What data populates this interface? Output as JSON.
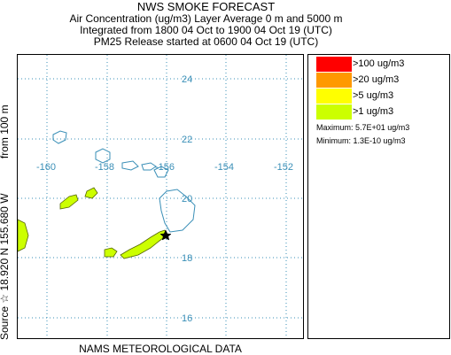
{
  "header": {
    "title": "NWS SMOKE FORECAST",
    "line2": "Air Concentration (ug/m3) Layer Average    0 m and  5000 m",
    "line3": "Integrated from 1800 04 Oct to 1900 04 Oct 19 (UTC)",
    "line4": "PM25 Release started at 0600 04 Oct 19 (UTC)"
  },
  "side_label": {
    "source": "Source ☆  18.920 N 155.680  W",
    "height": "from   100 m"
  },
  "bottom_label": "NAMS METEOROLOGICAL DATA",
  "map": {
    "longitude_labels": [
      "-160",
      "-158",
      "-156",
      "-154",
      "-152"
    ],
    "latitude_labels": [
      "24",
      "22",
      "20",
      "18",
      "16"
    ],
    "grid_color": "#3a8fb7",
    "coastline_color": "#3a8fb7",
    "source_marker": "star-icon"
  },
  "legend": {
    "items": [
      {
        "label": ">100 ug/m3",
        "color": "#ff0000"
      },
      {
        "label": ">20 ug/m3",
        "color": "#ff9900"
      },
      {
        "label": ">5 ug/m3",
        "color": "#ffff00"
      },
      {
        "label": ">1 ug/m3",
        "color": "#ccff00"
      }
    ],
    "maximum": "Maximum:  5.7E+01 ug/m3",
    "minimum": "Minimum:  1.3E-10 ug/m3"
  }
}
